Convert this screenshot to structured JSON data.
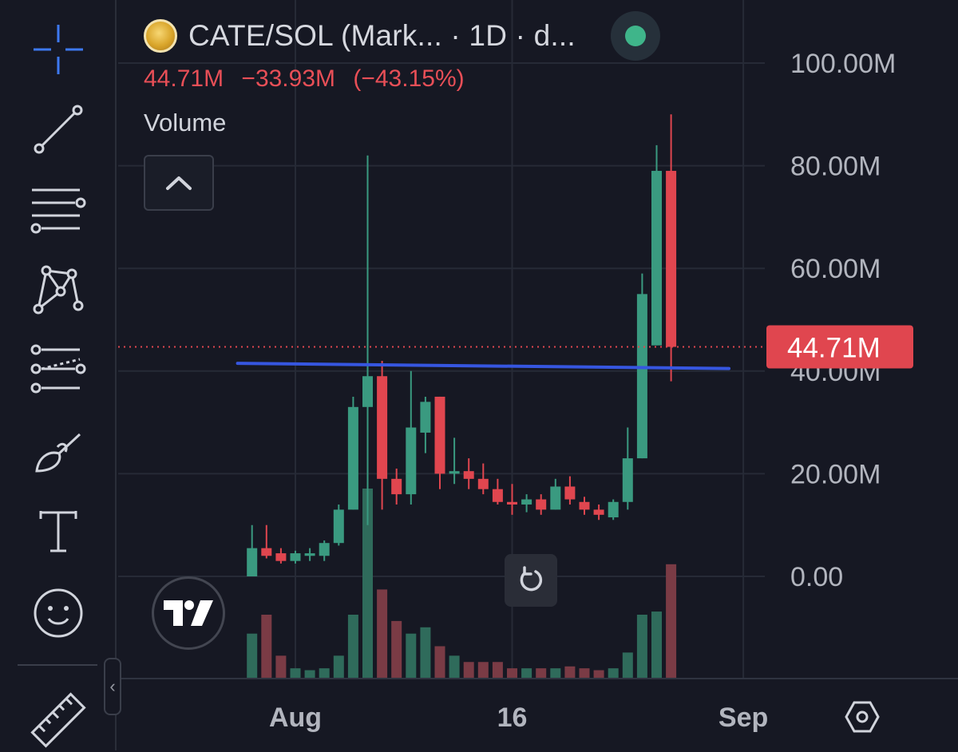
{
  "toolbar": {
    "tools": [
      {
        "name": "crosshair-tool",
        "icon": "crosshair-icon",
        "active": true
      },
      {
        "name": "trend-line-tool",
        "icon": "trend-line-icon"
      },
      {
        "name": "horizontal-lines-tool",
        "icon": "horizontal-lines-icon"
      },
      {
        "name": "pattern-tool",
        "icon": "xabcd-pattern-icon"
      },
      {
        "name": "projection-tool",
        "icon": "projection-icon"
      },
      {
        "name": "brush-tool",
        "icon": "brush-icon"
      },
      {
        "name": "text-tool",
        "icon": "text-icon"
      },
      {
        "name": "emoji-tool",
        "icon": "smiley-icon"
      },
      {
        "name": "ruler-tool",
        "icon": "ruler-icon"
      }
    ],
    "collapse_glyph": "‹"
  },
  "legend": {
    "symbol": "CATE/SOL (Mark...  · 1D · d...",
    "last": "44.71M",
    "change": "−33.93M",
    "change_pct": "(−43.15%)",
    "indicator": "Volume"
  },
  "colors": {
    "up": "#3a9a80",
    "down": "#e0464f",
    "up_volume": "#2f6b5b",
    "down_volume": "#7a3b45",
    "trendline": "#3656e0",
    "accent": "#3d79f2",
    "background": "#161823"
  },
  "chart_data": {
    "type": "candlestick",
    "timeframe": "1D",
    "y_ticks": [
      "100.00M",
      "80.00M",
      "60.00M",
      "40.00M",
      "20.00M",
      "0.00"
    ],
    "y_tick_values": [
      100,
      80,
      60,
      40,
      20,
      0
    ],
    "ylim": [
      -20.5,
      112
    ],
    "y_unit": "M",
    "x_tick_labels": [
      {
        "label": "Aug",
        "date": "Aug 1"
      },
      {
        "label": "16",
        "date": "Aug 16"
      },
      {
        "label": "Sep",
        "date": "Sep 1"
      }
    ],
    "x_grid_dates": [
      "Aug 1",
      "Aug 16",
      "Sep 1"
    ],
    "last_price": {
      "label": "44.71M",
      "value": 44.71
    },
    "horizontal_line": {
      "start_date": "Jul 28",
      "end_date": "Aug 31",
      "start_value": 41.5,
      "end_value": 40.5
    },
    "candles": [
      {
        "date": "Jul 29",
        "o": 0,
        "h": 10,
        "l": 0,
        "c": 5.5,
        "v": 7
      },
      {
        "date": "Jul 30",
        "o": 5.5,
        "h": 10,
        "l": 3.5,
        "c": 4,
        "v": 10
      },
      {
        "date": "Jul 31",
        "o": 4.5,
        "h": 5.5,
        "l": 2.5,
        "c": 3,
        "v": 3.5
      },
      {
        "date": "Aug 1",
        "o": 3,
        "h": 5,
        "l": 2.5,
        "c": 4.5,
        "v": 1.5
      },
      {
        "date": "Aug 2",
        "o": 4,
        "h": 5.5,
        "l": 3,
        "c": 4.5,
        "v": 1.2
      },
      {
        "date": "Aug 3",
        "o": 4,
        "h": 7,
        "l": 3,
        "c": 6.5,
        "v": 1.5
      },
      {
        "date": "Aug 4",
        "o": 6.5,
        "h": 14,
        "l": 6,
        "c": 13,
        "v": 3.5
      },
      {
        "date": "Aug 5",
        "o": 13,
        "h": 35,
        "l": 13,
        "c": 33,
        "v": 10
      },
      {
        "date": "Aug 6",
        "o": 33,
        "h": 82,
        "l": 10,
        "c": 39,
        "v": 30
      },
      {
        "date": "Aug 7",
        "o": 39,
        "h": 42,
        "l": 13,
        "c": 19,
        "v": 14
      },
      {
        "date": "Aug 8",
        "o": 19,
        "h": 21,
        "l": 14,
        "c": 16,
        "v": 9
      },
      {
        "date": "Aug 9",
        "o": 16,
        "h": 40,
        "l": 14,
        "c": 29,
        "v": 7
      },
      {
        "date": "Aug 10",
        "o": 28,
        "h": 35,
        "l": 24,
        "c": 34,
        "v": 8
      },
      {
        "date": "Aug 11",
        "o": 35,
        "h": 35,
        "l": 17,
        "c": 20,
        "v": 5
      },
      {
        "date": "Aug 12",
        "o": 20,
        "h": 27,
        "l": 18,
        "c": 20.5,
        "v": 3.5
      },
      {
        "date": "Aug 13",
        "o": 20.5,
        "h": 23,
        "l": 17,
        "c": 19,
        "v": 2.5
      },
      {
        "date": "Aug 14",
        "o": 19,
        "h": 22,
        "l": 16,
        "c": 17,
        "v": 2.5
      },
      {
        "date": "Aug 15",
        "o": 17,
        "h": 19,
        "l": 14,
        "c": 14.5,
        "v": 2.5
      },
      {
        "date": "Aug 16",
        "o": 14.5,
        "h": 18,
        "l": 12,
        "c": 14,
        "v": 1.5
      },
      {
        "date": "Aug 17",
        "o": 14,
        "h": 16,
        "l": 12.5,
        "c": 15,
        "v": 1.5
      },
      {
        "date": "Aug 18",
        "o": 15,
        "h": 16,
        "l": 12,
        "c": 13,
        "v": 1.5
      },
      {
        "date": "Aug 19",
        "o": 13,
        "h": 19,
        "l": 13,
        "c": 17.5,
        "v": 1.5
      },
      {
        "date": "Aug 20",
        "o": 17.5,
        "h": 19.5,
        "l": 14,
        "c": 15,
        "v": 1.8
      },
      {
        "date": "Aug 21",
        "o": 14.5,
        "h": 15.5,
        "l": 12,
        "c": 13,
        "v": 1.5
      },
      {
        "date": "Aug 22",
        "o": 13,
        "h": 14,
        "l": 11,
        "c": 12,
        "v": 1.2
      },
      {
        "date": "Aug 23",
        "o": 11.5,
        "h": 15,
        "l": 11,
        "c": 14.5,
        "v": 1.5
      },
      {
        "date": "Aug 24",
        "o": 14.5,
        "h": 29,
        "l": 13,
        "c": 23,
        "v": 4
      },
      {
        "date": "Aug 25",
        "o": 23,
        "h": 59,
        "l": 23,
        "c": 55,
        "v": 10
      },
      {
        "date": "Aug 26",
        "o": 45,
        "h": 84,
        "l": 45,
        "c": 79,
        "v": 10.5
      },
      {
        "date": "Aug 27",
        "o": 79,
        "h": 90,
        "l": 38,
        "c": 44.71,
        "v": 18
      }
    ]
  }
}
